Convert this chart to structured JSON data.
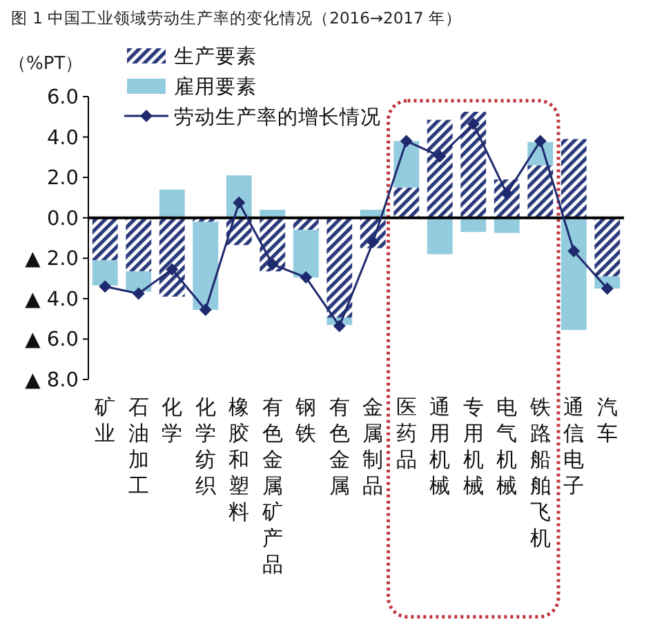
{
  "chart_data": {
    "type": "bar",
    "title": "图 1   中国工业领域劳动生产率的变化情况（2016→2017 年）",
    "ylabel": "（%PT）",
    "categories": [
      "矿业",
      "石油加工",
      "化学",
      "化学纺织",
      "橡胶和塑料",
      "有色金属矿产品",
      "钢铁",
      "有色金属",
      "金属制品",
      "医药品",
      "通用机械",
      "专用机械",
      "电气机械",
      "铁路、船舶、飞机",
      "通信、电子",
      "汽车"
    ],
    "stacked": true,
    "series": [
      {
        "name": "生产要素",
        "color": "#2b3a7c",
        "values": [
          -2.1,
          -2.65,
          -3.9,
          -0.2,
          -1.35,
          -2.65,
          -0.6,
          -4.95,
          -1.5,
          1.5,
          4.85,
          5.25,
          1.9,
          2.6,
          3.9,
          -2.9
        ]
      },
      {
        "name": "雇用要素",
        "color": "#93cbdf",
        "values": [
          -1.25,
          -1.0,
          1.4,
          -4.35,
          2.1,
          0.4,
          -2.35,
          -0.35,
          0.4,
          2.3,
          -1.8,
          -0.7,
          -0.75,
          1.15,
          -5.55,
          -0.6
        ]
      },
      {
        "name": "劳动生产率的增长情况",
        "type": "line",
        "color": "#1f2a6e",
        "marker": "diamond",
        "values": [
          -3.4,
          -3.75,
          -2.55,
          -4.55,
          0.75,
          -2.3,
          -2.95,
          -5.35,
          -1.2,
          3.8,
          3.05,
          4.65,
          1.2,
          3.8,
          -1.65,
          -3.5
        ]
      }
    ],
    "ylim": [
      -8,
      6
    ],
    "yticks": [
      {
        "value": 6,
        "label": "6.0"
      },
      {
        "value": 4,
        "label": "4.0"
      },
      {
        "value": 2,
        "label": "2.0"
      },
      {
        "value": 0,
        "label": "0.0"
      },
      {
        "value": -2,
        "label": "▲ 2.0"
      },
      {
        "value": -4,
        "label": "▲ 4.0"
      },
      {
        "value": -6,
        "label": "▲ 6.0"
      },
      {
        "value": -8,
        "label": "▲ 8.0"
      }
    ],
    "legend": "top left"
  }
}
